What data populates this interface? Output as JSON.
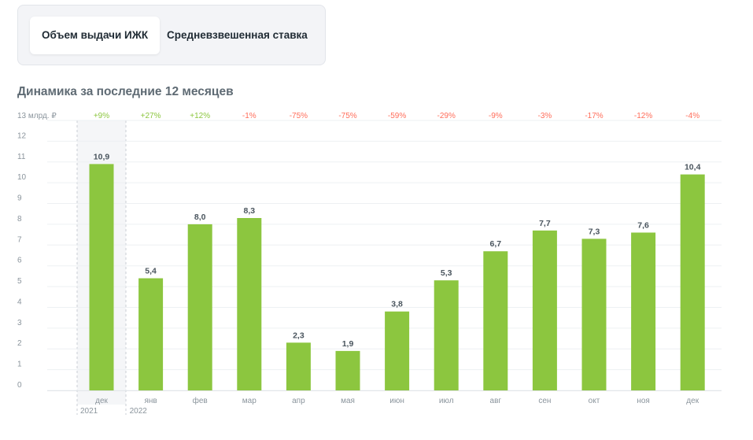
{
  "tabs": [
    {
      "label": "Объем выдачи ИЖК",
      "active": true
    },
    {
      "label": "Средневзвешенная ставка",
      "active": false
    }
  ],
  "section_title": "Динамика за последние 12 месяцев",
  "colors": {
    "bar": "#8cc63f",
    "positive_change": "#8cc63f",
    "negative_change": "#ff6d5a",
    "grid": "#edf0f3",
    "axis_text": "#8a949c",
    "value_label": "#4a555e",
    "highlight_bg": "#f5f6f8"
  },
  "chart_data": {
    "type": "bar",
    "y_unit_label": "13 млрд. ₽",
    "ylim": [
      0,
      13
    ],
    "y_ticks": [
      "0",
      "1",
      "2",
      "3",
      "4",
      "5",
      "6",
      "7",
      "8",
      "9",
      "10",
      "11",
      "12"
    ],
    "grid": true,
    "categories": [
      "дек",
      "янв",
      "фев",
      "мар",
      "апр",
      "мая",
      "июн",
      "июл",
      "авг",
      "сен",
      "окт",
      "ноя",
      "дек"
    ],
    "values": [
      10.9,
      5.4,
      8.0,
      8.3,
      2.3,
      1.9,
      3.8,
      5.3,
      6.7,
      7.7,
      7.3,
      7.6,
      10.4
    ],
    "value_labels": [
      "10,9",
      "5,4",
      "8,0",
      "8,3",
      "2,3",
      "1,9",
      "3,8",
      "5,3",
      "6,7",
      "7,7",
      "7,3",
      "7,6",
      "10,4"
    ],
    "changes": [
      "+9%",
      "+27%",
      "+12%",
      "-1%",
      "-75%",
      "-75%",
      "-59%",
      "-29%",
      "-9%",
      "-3%",
      "-17%",
      "-12%",
      "-4%"
    ],
    "years": [
      {
        "label": "2021",
        "start_index": 0
      },
      {
        "label": "2022",
        "start_index": 1
      }
    ],
    "highlighted_index": 0
  }
}
